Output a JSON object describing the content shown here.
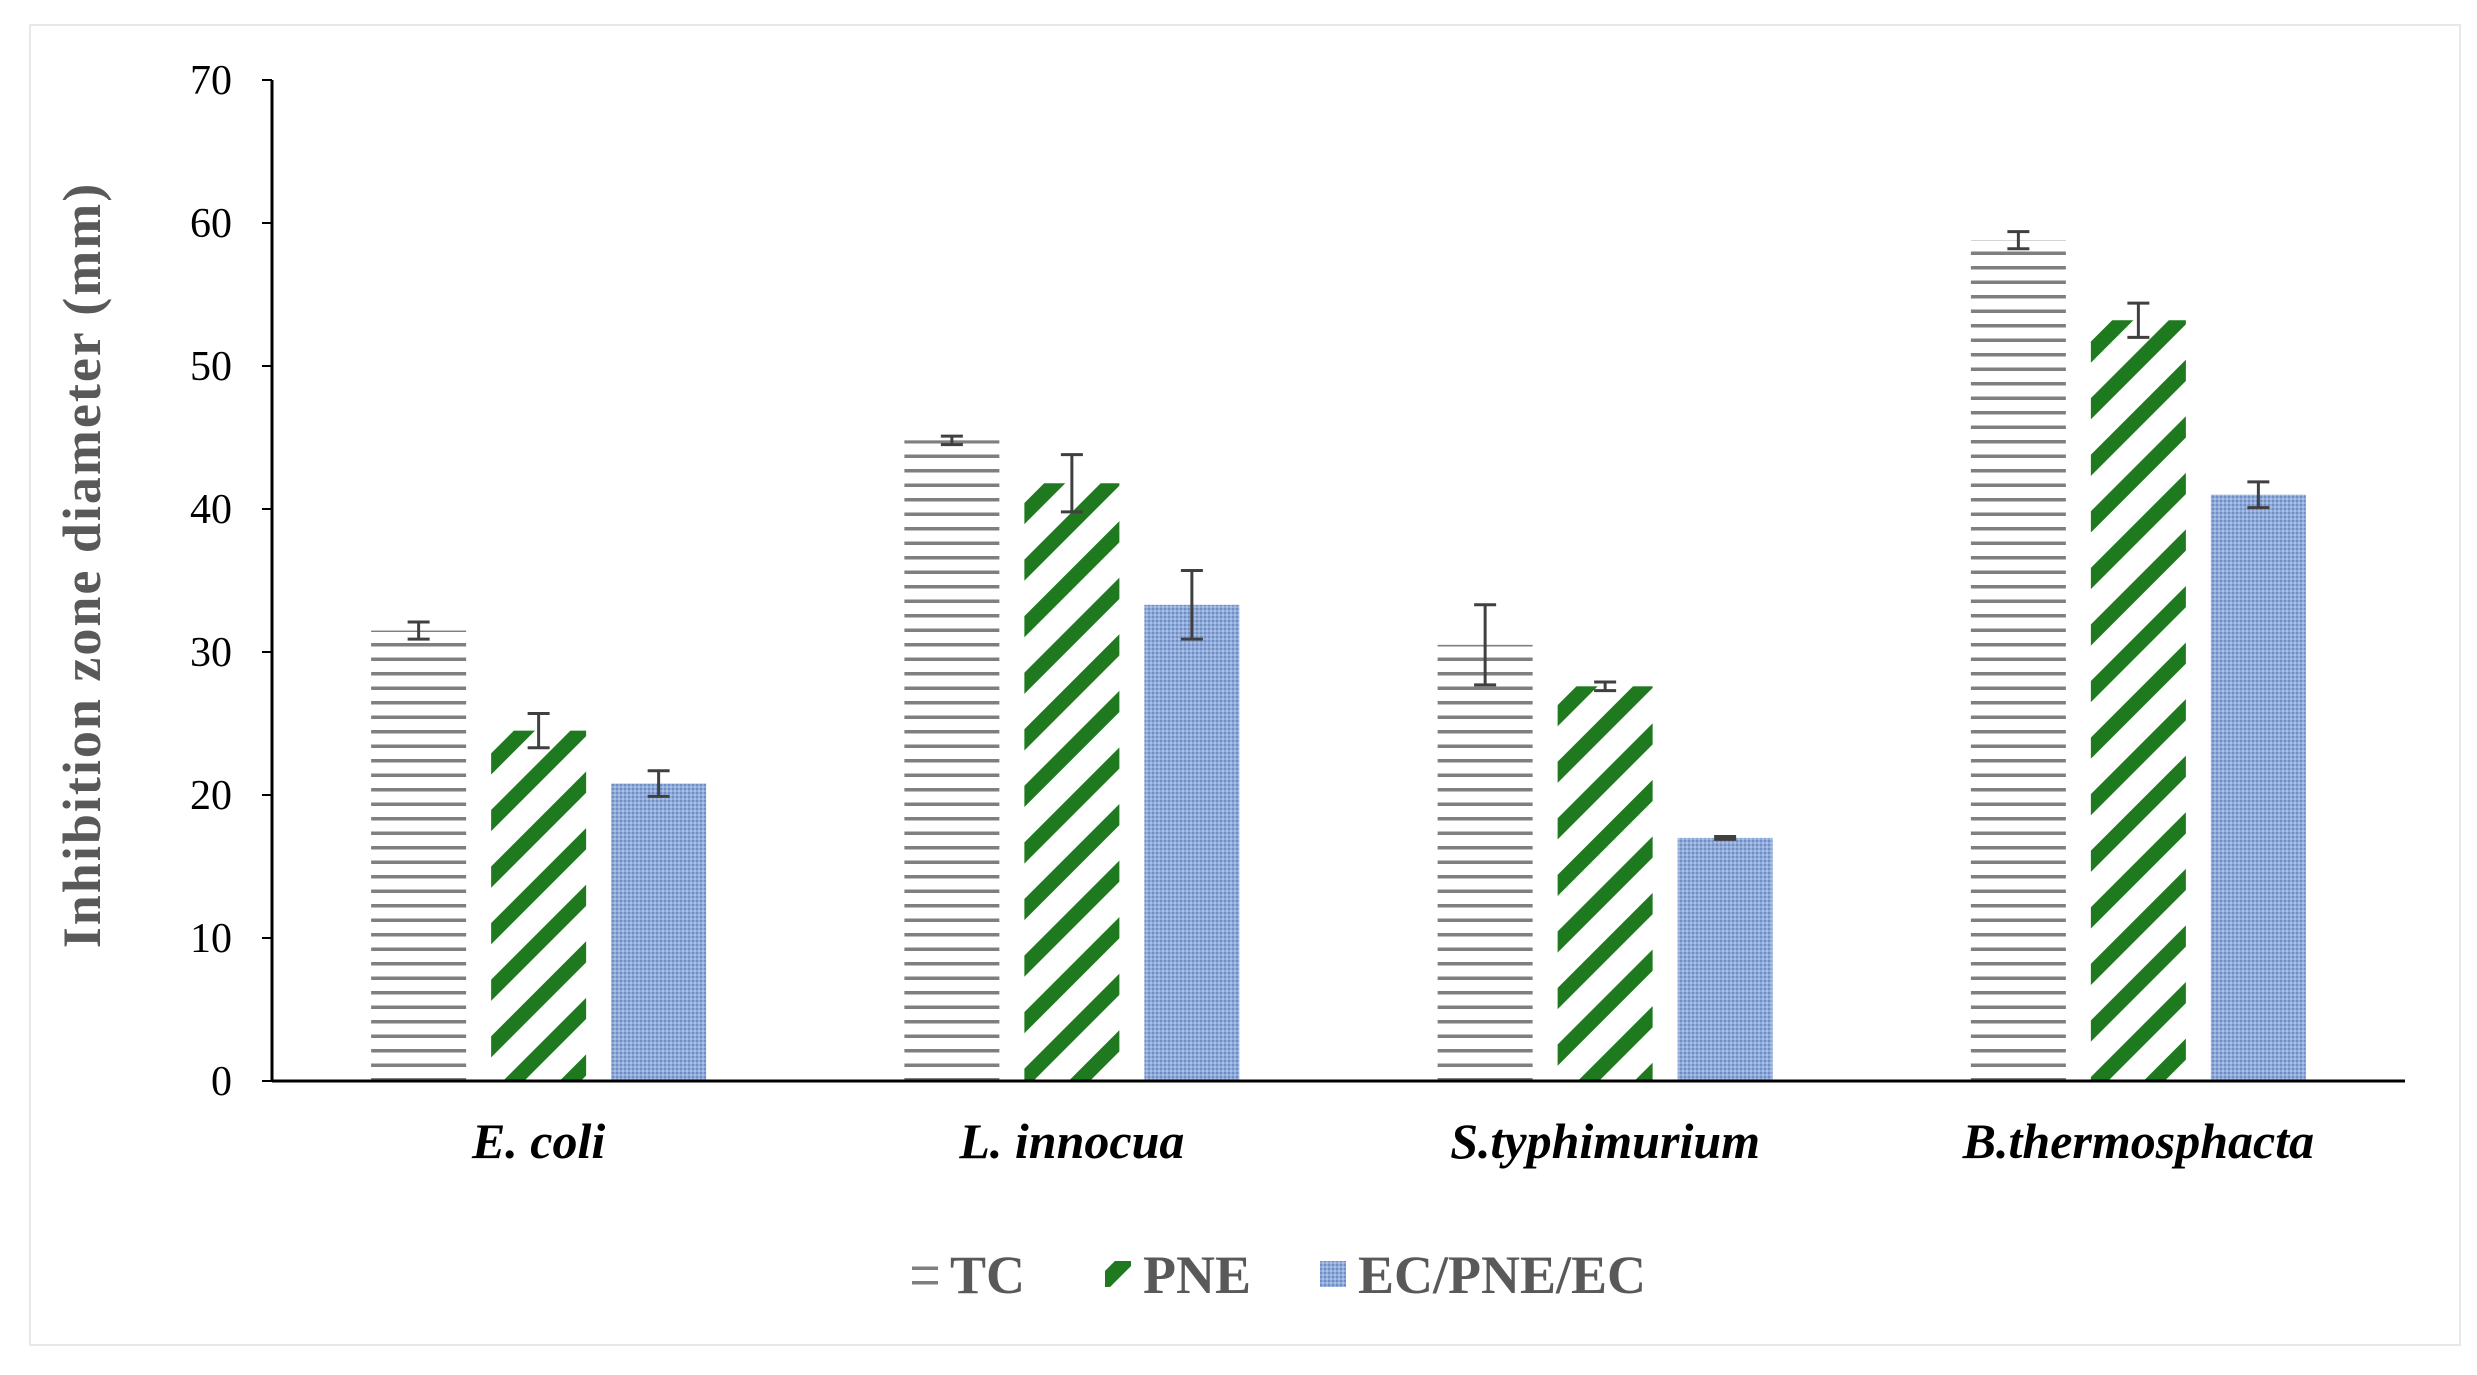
{
  "chart_data": {
    "type": "bar",
    "title": "",
    "xlabel": "",
    "ylabel": "Inhibition  zone  diameter  (mm)",
    "ylim": [
      0,
      70
    ],
    "yticks": [
      0,
      10,
      20,
      30,
      40,
      50,
      60,
      70
    ],
    "grid": false,
    "legend_position": "bottom-center",
    "categories": [
      "E. coli",
      "L. innocua",
      "S.typhimurium",
      "B.thermosphacta"
    ],
    "series": [
      {
        "name": "TC",
        "pattern": "horizontal-lines",
        "color": "#7f7f7f",
        "values": [
          31.5,
          44.8,
          30.5,
          58.8
        ],
        "errors": [
          0.6,
          0.3,
          2.8,
          0.6
        ]
      },
      {
        "name": "PNE",
        "pattern": "diagonal-stripes",
        "color": "#1f7a1f",
        "values": [
          24.5,
          41.8,
          27.6,
          53.2
        ],
        "errors": [
          1.2,
          2.0,
          0.3,
          1.2
        ]
      },
      {
        "name": "EC/PNE/EC",
        "pattern": "fine-dots",
        "color": "#7f9fd1",
        "values": [
          20.8,
          33.3,
          17.0,
          41.0
        ],
        "errors": [
          0.9,
          2.4,
          0.1,
          0.9
        ]
      }
    ]
  }
}
